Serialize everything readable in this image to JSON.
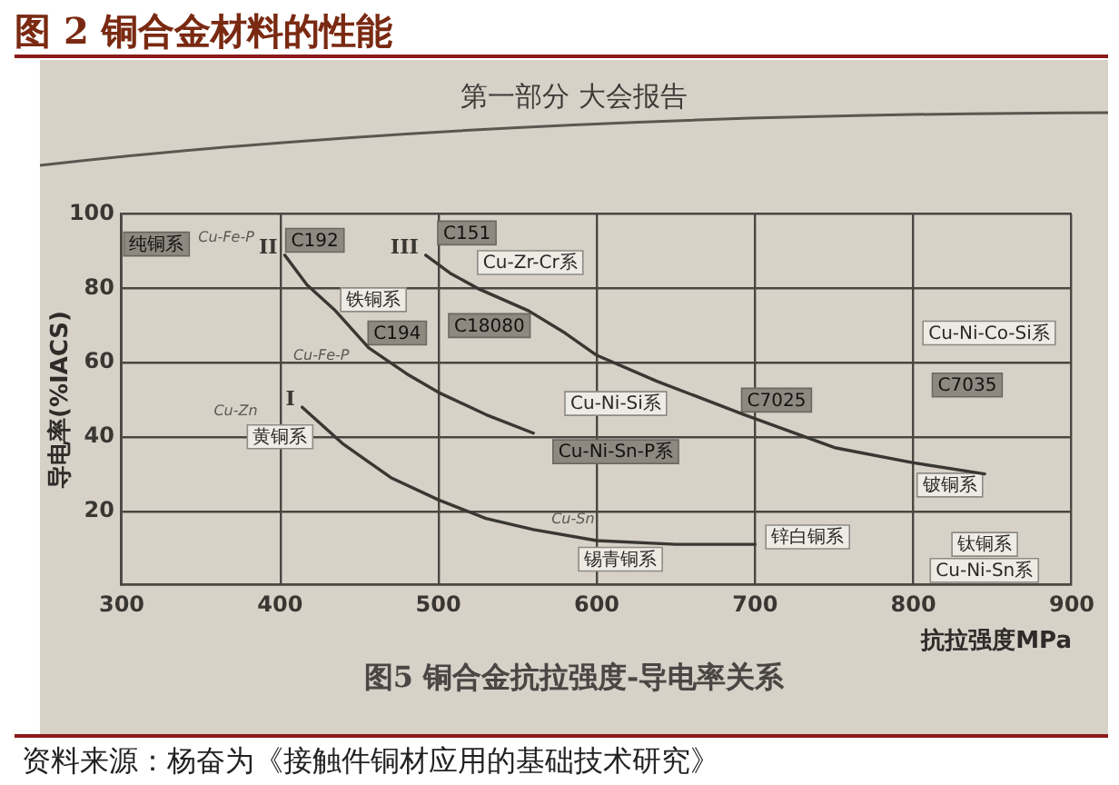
{
  "chart_data": {
    "type": "line",
    "title": "图 2 铜合金材料的性能",
    "subtitle": "图5 铜合金抗拉强度-导电率关系",
    "xlabel": "抗拉强度MPa",
    "ylabel": "导电率(%IACS)",
    "series": [
      {
        "name": "I",
        "color": "#3a3733",
        "x": [
          414,
          440,
          470,
          500,
          530,
          560,
          600,
          650,
          700
        ],
        "values": [
          48,
          38,
          29,
          23,
          18,
          15,
          12,
          11,
          11
        ]
      },
      {
        "name": "II",
        "color": "#3a3733",
        "x": [
          403,
          417,
          435,
          456,
          480,
          500,
          530,
          560
        ],
        "values": [
          89,
          81,
          74,
          64,
          57,
          52,
          46,
          41
        ]
      },
      {
        "name": "III",
        "color": "#3a3733",
        "x": [
          492,
          508,
          525,
          557,
          580,
          600,
          638,
          693,
          751,
          800,
          845
        ],
        "values": [
          89,
          84,
          80,
          74,
          68,
          62,
          55,
          46,
          37,
          33,
          30
        ]
      }
    ],
    "xlim": [
      300,
      900
    ],
    "xticks": [
      300,
      400,
      500,
      600,
      700,
      800,
      900
    ],
    "ylim": [
      0,
      100
    ],
    "yticks": [
      20,
      40,
      60,
      80,
      100
    ],
    "grid": true,
    "legend": false,
    "marker": "none",
    "annotations": [
      "第一部分 大会报告",
      "资料来源：杨奋为《接触件铜材应用的基础技术研究》",
      {
        "text": "纯铜系",
        "x": 322,
        "y": 92
      },
      "Cu-Fe-P",
      {
        "text": "C192",
        "x": 422,
        "y": 93
      },
      "铁铜系",
      "Cu-Fe-P",
      "C194",
      {
        "text": "C151",
        "x": 518,
        "y": 95
      },
      "Cu-Zr-Cr系",
      "C18080",
      "Cu-Ni-Si系",
      "Cu-Ni-Sn-P系",
      {
        "text": "C7025",
        "x": 717,
        "y": 45
      },
      "Cu-Ni-Co-Si系",
      {
        "text": "C7035",
        "x": 834,
        "y": 54
      },
      {
        "text": "铍铜系",
        "x": 823,
        "y": 27
      },
      "锌白铜系",
      "Cu-Sn",
      "锡青铜系",
      {
        "text": "钛铜系",
        "x": 845,
        "y": 11
      },
      "Cu-Ni-Sn系",
      {
        "text": "黄铜系",
        "x": 400,
        "y": 40
      },
      "Cu-Zn"
    ]
  }
}
